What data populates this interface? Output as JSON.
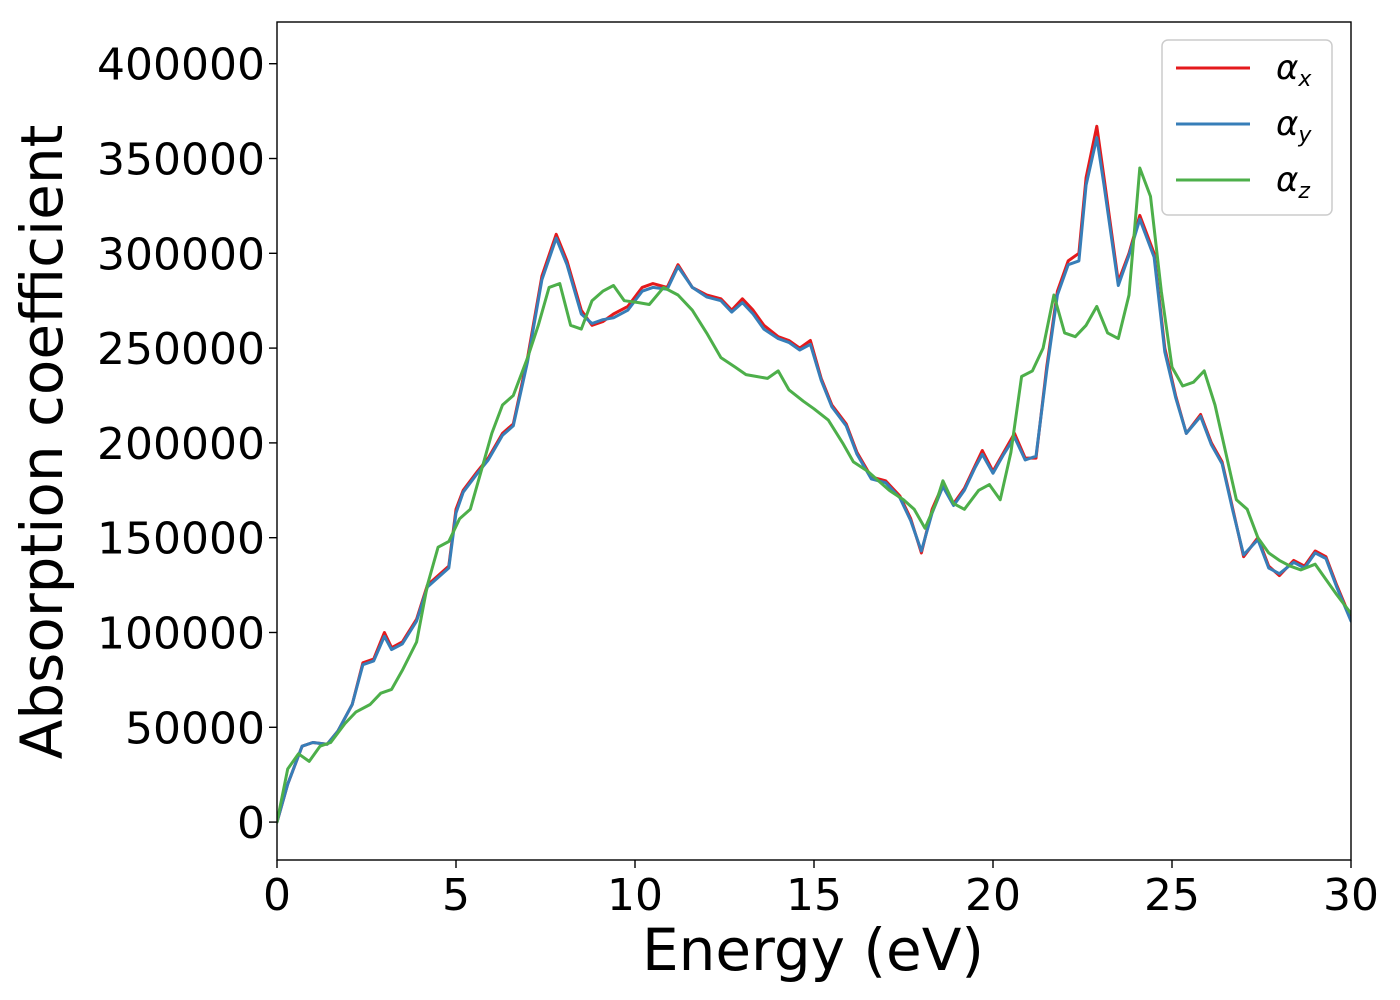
{
  "chart_data": {
    "type": "line",
    "xlabel": "Energy (eV)",
    "ylabel": "Absorption coefficient",
    "xlim": [
      0,
      30
    ],
    "ylim": [
      -20000,
      422000
    ],
    "xticks": [
      "0",
      "5",
      "10",
      "15",
      "20",
      "25",
      "30"
    ],
    "yticks": [
      "0",
      "50000",
      "100000",
      "150000",
      "200000",
      "250000",
      "300000",
      "350000",
      "400000"
    ],
    "grid": false,
    "legend_position": "top-right",
    "series": [
      {
        "name": "α",
        "subscript": "x",
        "color": "#e41a1c",
        "x": [
          0,
          0.3,
          0.7,
          1.0,
          1.4,
          1.7,
          2.1,
          2.4,
          2.7,
          3.0,
          3.2,
          3.5,
          3.9,
          4.2,
          4.5,
          4.8,
          5.0,
          5.2,
          5.6,
          5.9,
          6.3,
          6.6,
          7.0,
          7.4,
          7.8,
          8.1,
          8.5,
          8.8,
          9.1,
          9.4,
          9.8,
          10.2,
          10.5,
          10.9,
          11.2,
          11.6,
          12.0,
          12.4,
          12.7,
          13.0,
          13.3,
          13.6,
          14.0,
          14.3,
          14.6,
          14.9,
          15.2,
          15.5,
          15.9,
          16.2,
          16.6,
          17.0,
          17.4,
          17.7,
          18.0,
          18.3,
          18.6,
          18.9,
          19.2,
          19.5,
          19.7,
          20.0,
          20.3,
          20.6,
          20.9,
          21.2,
          21.5,
          21.8,
          22.1,
          22.4,
          22.6,
          22.9,
          23.1,
          23.5,
          23.8,
          24.1,
          24.5,
          24.8,
          25.1,
          25.4,
          25.8,
          26.1,
          26.4,
          26.7,
          27.0,
          27.4,
          27.7,
          28.0,
          28.4,
          28.7,
          29.0,
          29.3,
          29.6,
          30.0
        ],
        "y": [
          0,
          20000,
          40000,
          42000,
          41000,
          48000,
          62000,
          84000,
          86000,
          100000,
          92000,
          95000,
          107000,
          125000,
          130000,
          135000,
          165000,
          175000,
          185000,
          192000,
          205000,
          210000,
          245000,
          288000,
          310000,
          296000,
          270000,
          262000,
          264000,
          268000,
          272000,
          282000,
          284000,
          282000,
          294000,
          282000,
          278000,
          276000,
          270000,
          276000,
          270000,
          262000,
          256000,
          254000,
          250000,
          254000,
          234000,
          220000,
          210000,
          195000,
          182000,
          180000,
          172000,
          160000,
          142000,
          165000,
          178000,
          168000,
          176000,
          188000,
          196000,
          185000,
          195000,
          205000,
          192000,
          192000,
          240000,
          280000,
          296000,
          300000,
          340000,
          367000,
          340000,
          285000,
          300000,
          320000,
          300000,
          250000,
          225000,
          205000,
          215000,
          200000,
          190000,
          165000,
          140000,
          150000,
          135000,
          130000,
          138000,
          135000,
          143000,
          140000,
          125000,
          107000
        ]
      },
      {
        "name": "α",
        "subscript": "y",
        "color": "#377eb8",
        "x": [
          0,
          0.3,
          0.7,
          1.0,
          1.4,
          1.7,
          2.1,
          2.4,
          2.7,
          3.0,
          3.2,
          3.5,
          3.9,
          4.2,
          4.5,
          4.8,
          5.0,
          5.2,
          5.6,
          5.9,
          6.3,
          6.6,
          7.0,
          7.4,
          7.8,
          8.1,
          8.5,
          8.8,
          9.1,
          9.4,
          9.8,
          10.2,
          10.5,
          10.9,
          11.2,
          11.6,
          12.0,
          12.4,
          12.7,
          13.0,
          13.3,
          13.6,
          14.0,
          14.3,
          14.6,
          14.9,
          15.2,
          15.5,
          15.9,
          16.2,
          16.6,
          17.0,
          17.4,
          17.7,
          18.0,
          18.3,
          18.6,
          18.9,
          19.2,
          19.5,
          19.7,
          20.0,
          20.3,
          20.6,
          20.9,
          21.2,
          21.5,
          21.8,
          22.1,
          22.4,
          22.6,
          22.9,
          23.1,
          23.5,
          23.8,
          24.1,
          24.5,
          24.8,
          25.1,
          25.4,
          25.8,
          26.1,
          26.4,
          26.7,
          27.0,
          27.4,
          27.7,
          28.0,
          28.4,
          28.7,
          29.0,
          29.3,
          29.6,
          30.0
        ],
        "y": [
          0,
          20000,
          40000,
          42000,
          41000,
          48000,
          62000,
          83000,
          85000,
          98000,
          91000,
          94000,
          106000,
          124000,
          129000,
          134000,
          163000,
          174000,
          184000,
          191000,
          204000,
          209000,
          243000,
          286000,
          308000,
          294000,
          268000,
          263000,
          265000,
          266000,
          270000,
          280000,
          282000,
          281000,
          293000,
          282000,
          277000,
          275000,
          269000,
          274000,
          268000,
          260000,
          255000,
          253000,
          249000,
          252000,
          233000,
          219000,
          209000,
          194000,
          181000,
          179000,
          171000,
          159000,
          143000,
          163000,
          177000,
          167000,
          175000,
          187000,
          194000,
          184000,
          194000,
          203000,
          191000,
          193000,
          238000,
          278000,
          294000,
          296000,
          336000,
          361000,
          336000,
          283000,
          299000,
          318000,
          298000,
          248000,
          224000,
          205000,
          214000,
          199000,
          189000,
          164000,
          141000,
          149000,
          134000,
          131000,
          137000,
          134000,
          142000,
          139000,
          124000,
          106000
        ]
      },
      {
        "name": "α",
        "subscript": "z",
        "color": "#4daf4a",
        "x": [
          0,
          0.3,
          0.6,
          0.9,
          1.2,
          1.5,
          1.9,
          2.2,
          2.6,
          2.9,
          3.2,
          3.5,
          3.9,
          4.2,
          4.5,
          4.8,
          5.1,
          5.4,
          5.7,
          6.0,
          6.3,
          6.6,
          7.0,
          7.3,
          7.6,
          7.9,
          8.2,
          8.5,
          8.8,
          9.1,
          9.4,
          9.7,
          10.1,
          10.4,
          10.8,
          11.2,
          11.6,
          12.0,
          12.4,
          12.8,
          13.1,
          13.4,
          13.7,
          14.0,
          14.3,
          14.7,
          15.0,
          15.4,
          15.8,
          16.1,
          16.5,
          16.8,
          17.1,
          17.5,
          17.8,
          18.1,
          18.4,
          18.6,
          18.9,
          19.2,
          19.6,
          19.9,
          20.2,
          20.5,
          20.8,
          21.1,
          21.4,
          21.7,
          22.0,
          22.3,
          22.6,
          22.9,
          23.2,
          23.5,
          23.8,
          24.1,
          24.4,
          24.7,
          25.0,
          25.3,
          25.6,
          25.9,
          26.2,
          26.5,
          26.8,
          27.1,
          27.4,
          27.7,
          28.0,
          28.3,
          28.6,
          29.0,
          29.3,
          29.6,
          30.0
        ],
        "y": [
          0,
          28000,
          36000,
          32000,
          40000,
          42000,
          52000,
          58000,
          62000,
          68000,
          70000,
          80000,
          95000,
          125000,
          145000,
          148000,
          160000,
          165000,
          185000,
          205000,
          220000,
          225000,
          245000,
          262000,
          282000,
          284000,
          262000,
          260000,
          275000,
          280000,
          283000,
          275000,
          274000,
          273000,
          282000,
          278000,
          270000,
          258000,
          245000,
          240000,
          236000,
          235000,
          234000,
          238000,
          228000,
          222000,
          218000,
          212000,
          200000,
          190000,
          185000,
          180000,
          175000,
          170000,
          165000,
          155000,
          168000,
          180000,
          168000,
          165000,
          175000,
          178000,
          170000,
          195000,
          235000,
          238000,
          250000,
          278000,
          258000,
          256000,
          262000,
          272000,
          258000,
          255000,
          278000,
          345000,
          330000,
          280000,
          240000,
          230000,
          232000,
          238000,
          220000,
          195000,
          170000,
          165000,
          150000,
          142000,
          138000,
          135000,
          133000,
          136000,
          128000,
          120000,
          110000
        ]
      }
    ]
  }
}
